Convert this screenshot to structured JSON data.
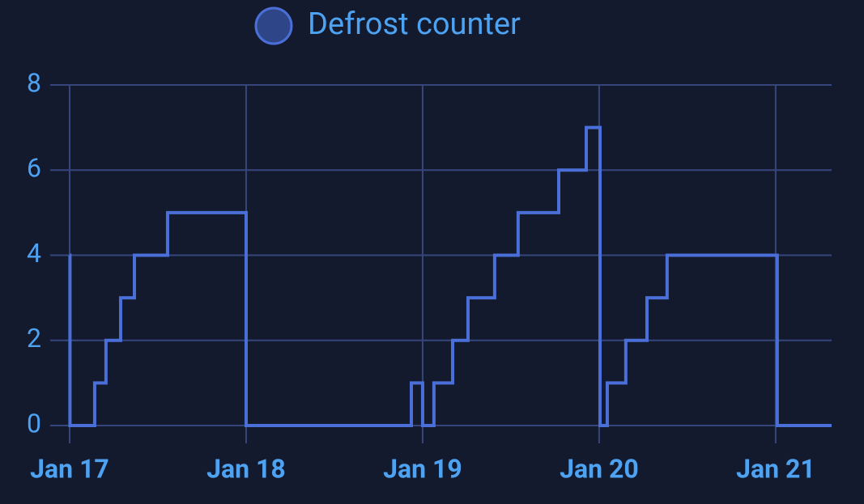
{
  "chart_data": {
    "type": "line",
    "step": "after",
    "x": [
      0,
      0.002,
      0.142,
      0.206,
      0.289,
      0.367,
      0.555,
      1.0,
      1.936,
      2.0,
      2.064,
      2.17,
      2.257,
      2.408,
      2.541,
      2.771,
      2.927,
      3.005,
      3.046,
      3.151,
      3.271,
      3.385,
      4.009,
      4.317
    ],
    "series": [
      {
        "name": "Defrost counter",
        "color": "#4a6fd8",
        "values": [
          4,
          0,
          1,
          2,
          3,
          4,
          5,
          0,
          1,
          0,
          1,
          2,
          3,
          4,
          5,
          6,
          7,
          0,
          1,
          2,
          3,
          4,
          0,
          0
        ]
      }
    ],
    "xlim": [
      -0.11,
      4.317
    ],
    "xticks": [
      {
        "value": 0,
        "label": "Jan 17"
      },
      {
        "value": 1,
        "label": "Jan 18"
      },
      {
        "value": 2,
        "label": "Jan 19"
      },
      {
        "value": 3,
        "label": "Jan 20"
      },
      {
        "value": 4,
        "label": "Jan 21"
      }
    ],
    "ylim": [
      0,
      8
    ],
    "yticks": [
      0,
      2,
      4,
      6,
      8
    ],
    "grid": true,
    "legend": "top"
  }
}
